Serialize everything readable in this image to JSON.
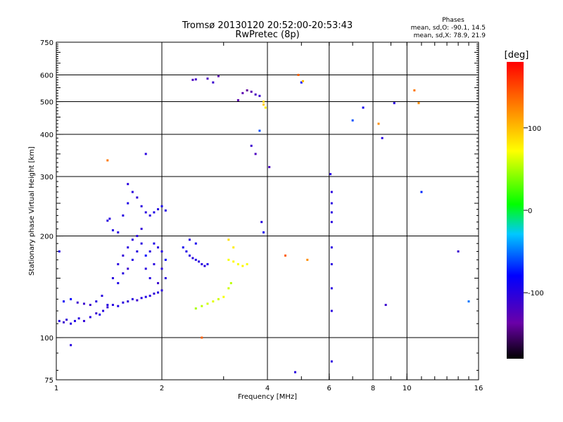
{
  "chart_data": {
    "type": "scatter",
    "title": "Tromsø 20130120 20:52:00-20:53:43",
    "subtitle": "RwPretec (8p)",
    "xlabel": "Frequency [MHz]",
    "ylabel": "Stationary phase Virtual Height [km]",
    "x_scale": "log",
    "y_scale": "log",
    "xlim": [
      1,
      16
    ],
    "ylim": [
      75,
      750
    ],
    "x_ticks": [
      1,
      2,
      4,
      6,
      8,
      10,
      16
    ],
    "x_tick_labels": [
      "1",
      "2",
      "4",
      "6",
      "8",
      "10",
      "16"
    ],
    "y_ticks": [
      75,
      100,
      200,
      300,
      400,
      500,
      600,
      750
    ],
    "y_tick_labels": [
      "75",
      "100",
      "200",
      "300",
      "400",
      "500",
      "600",
      "750"
    ],
    "grid_x": [
      2,
      4,
      6,
      8,
      10
    ],
    "grid_y": [
      100,
      200,
      300,
      400,
      500,
      600
    ],
    "stats": {
      "heading": "Phases",
      "line_o": "mean, sd,O: -90.1, 14.5",
      "line_x": "mean, sd,X: 78.9, 21.9"
    },
    "colorbar": {
      "label": "[deg]",
      "range": [
        -180,
        180
      ],
      "ticks": [
        -100,
        0,
        100
      ],
      "tick_labels": [
        "-100",
        "0",
        "100"
      ]
    },
    "points": [
      [
        1.02,
        112,
        -100
      ],
      [
        1.05,
        111,
        -110
      ],
      [
        1.07,
        113,
        -105
      ],
      [
        1.1,
        110,
        -100
      ],
      [
        1.13,
        112,
        -95
      ],
      [
        1.16,
        114,
        -100
      ],
      [
        1.2,
        112,
        -105
      ],
      [
        1.25,
        115,
        -100
      ],
      [
        1.3,
        118,
        -110
      ],
      [
        1.33,
        117,
        -95
      ],
      [
        1.36,
        120,
        -100
      ],
      [
        1.4,
        123,
        -105
      ],
      [
        1.45,
        125,
        -100
      ],
      [
        1.5,
        124,
        -95
      ],
      [
        1.55,
        127,
        -100
      ],
      [
        1.6,
        128,
        -105
      ],
      [
        1.65,
        130,
        -100
      ],
      [
        1.7,
        129,
        -110
      ],
      [
        1.75,
        131,
        -100
      ],
      [
        1.8,
        132,
        -95
      ],
      [
        1.85,
        133,
        -100
      ],
      [
        1.9,
        135,
        -105
      ],
      [
        1.95,
        136,
        -100
      ],
      [
        2.0,
        138,
        -100
      ],
      [
        1.05,
        128,
        -85
      ],
      [
        1.1,
        130,
        -80
      ],
      [
        1.15,
        127,
        -110
      ],
      [
        1.2,
        126,
        -110
      ],
      [
        1.25,
        125,
        -110
      ],
      [
        1.3,
        128,
        -100
      ],
      [
        1.35,
        133,
        -100
      ],
      [
        1.4,
        125,
        -100
      ],
      [
        1.45,
        150,
        -100
      ],
      [
        1.5,
        145,
        -95
      ],
      [
        1.5,
        165,
        -100
      ],
      [
        1.55,
        175,
        -105
      ],
      [
        1.55,
        155,
        -100
      ],
      [
        1.6,
        185,
        -100
      ],
      [
        1.6,
        160,
        -110
      ],
      [
        1.65,
        195,
        -100
      ],
      [
        1.65,
        170,
        -95
      ],
      [
        1.7,
        200,
        -100
      ],
      [
        1.7,
        180,
        -100
      ],
      [
        1.75,
        210,
        -105
      ],
      [
        1.75,
        190,
        -100
      ],
      [
        1.8,
        175,
        -80
      ],
      [
        1.8,
        160,
        -100
      ],
      [
        1.85,
        180,
        -100
      ],
      [
        1.85,
        150,
        -100
      ],
      [
        1.9,
        190,
        -95
      ],
      [
        1.9,
        165,
        -100
      ],
      [
        1.95,
        185,
        -100
      ],
      [
        1.95,
        145,
        -110
      ],
      [
        2.0,
        180,
        -100
      ],
      [
        2.0,
        160,
        -100
      ],
      [
        2.05,
        150,
        -100
      ],
      [
        2.05,
        170,
        -80
      ],
      [
        1.55,
        230,
        -100
      ],
      [
        1.6,
        250,
        -95
      ],
      [
        1.65,
        270,
        -100
      ],
      [
        1.6,
        285,
        -100
      ],
      [
        1.7,
        260,
        -105
      ],
      [
        1.75,
        245,
        -100
      ],
      [
        1.8,
        235,
        -100
      ],
      [
        1.85,
        230,
        -100
      ],
      [
        1.9,
        235,
        -95
      ],
      [
        1.95,
        240,
        -100
      ],
      [
        2.0,
        245,
        -90
      ],
      [
        2.05,
        238,
        -95
      ],
      [
        1.42,
        225,
        -100
      ],
      [
        1.4,
        222,
        -100
      ],
      [
        1.45,
        208,
        -95
      ],
      [
        1.5,
        205,
        -100
      ],
      [
        2.3,
        185,
        -90
      ],
      [
        2.35,
        180,
        -95
      ],
      [
        2.4,
        175,
        -100
      ],
      [
        2.45,
        172,
        -100
      ],
      [
        2.5,
        170,
        -95
      ],
      [
        2.55,
        168,
        -100
      ],
      [
        2.6,
        165,
        -100
      ],
      [
        2.65,
        163,
        -100
      ],
      [
        2.7,
        165,
        -95
      ],
      [
        2.4,
        195,
        -100
      ],
      [
        2.5,
        190,
        -90
      ],
      [
        2.5,
        122,
        50
      ],
      [
        2.6,
        124,
        55
      ],
      [
        2.7,
        126,
        60
      ],
      [
        2.8,
        128,
        65
      ],
      [
        2.9,
        130,
        60
      ],
      [
        3.0,
        132,
        70
      ],
      [
        3.1,
        140,
        60
      ],
      [
        3.15,
        145,
        55
      ],
      [
        3.1,
        170,
        70
      ],
      [
        3.2,
        168,
        75
      ],
      [
        3.3,
        165,
        70
      ],
      [
        3.4,
        163,
        75
      ],
      [
        3.5,
        165,
        70
      ],
      [
        3.2,
        185,
        80
      ],
      [
        3.1,
        195,
        85
      ],
      [
        2.45,
        580,
        -120
      ],
      [
        2.5,
        582,
        -115
      ],
      [
        2.7,
        585,
        -120
      ],
      [
        2.8,
        570,
        -110
      ],
      [
        2.9,
        595,
        -130
      ],
      [
        3.3,
        505,
        -130
      ],
      [
        3.4,
        530,
        -130
      ],
      [
        3.5,
        540,
        -140
      ],
      [
        3.6,
        535,
        -130
      ],
      [
        3.7,
        525,
        -120
      ],
      [
        3.8,
        520,
        -110
      ],
      [
        3.9,
        500,
        90
      ],
      [
        3.9,
        490,
        95
      ],
      [
        3.95,
        480,
        80
      ],
      [
        3.7,
        350,
        -120
      ],
      [
        3.6,
        370,
        -110
      ],
      [
        4.05,
        320,
        -120
      ],
      [
        3.8,
        410,
        -60
      ],
      [
        3.85,
        220,
        -100
      ],
      [
        3.9,
        205,
        -90
      ],
      [
        4.5,
        175,
        140
      ],
      [
        5.2,
        170,
        120
      ],
      [
        5.0,
        570,
        -80
      ],
      [
        4.9,
        600,
        140
      ],
      [
        5.05,
        575,
        100
      ],
      [
        6.05,
        305,
        -100
      ],
      [
        6.1,
        270,
        -100
      ],
      [
        6.1,
        250,
        -100
      ],
      [
        6.1,
        235,
        -100
      ],
      [
        6.1,
        220,
        -100
      ],
      [
        6.1,
        185,
        -100
      ],
      [
        6.1,
        165,
        -100
      ],
      [
        6.1,
        140,
        -100
      ],
      [
        6.1,
        120,
        -100
      ],
      [
        6.1,
        85,
        -100
      ],
      [
        7.0,
        440,
        -60
      ],
      [
        7.5,
        480,
        -90
      ],
      [
        8.3,
        430,
        120
      ],
      [
        8.5,
        390,
        -100
      ],
      [
        8.7,
        125,
        -110
      ],
      [
        9.2,
        495,
        -100
      ],
      [
        10.5,
        540,
        130
      ],
      [
        10.8,
        495,
        120
      ],
      [
        11.0,
        270,
        -70
      ],
      [
        14.0,
        180,
        -110
      ],
      [
        15.0,
        128,
        -50
      ],
      [
        1.4,
        335,
        130
      ],
      [
        1.8,
        350,
        -100
      ],
      [
        4.8,
        79,
        -100
      ],
      [
        2.6,
        100,
        140
      ],
      [
        1.1,
        95,
        -100
      ],
      [
        1.02,
        180,
        -100
      ]
    ]
  }
}
